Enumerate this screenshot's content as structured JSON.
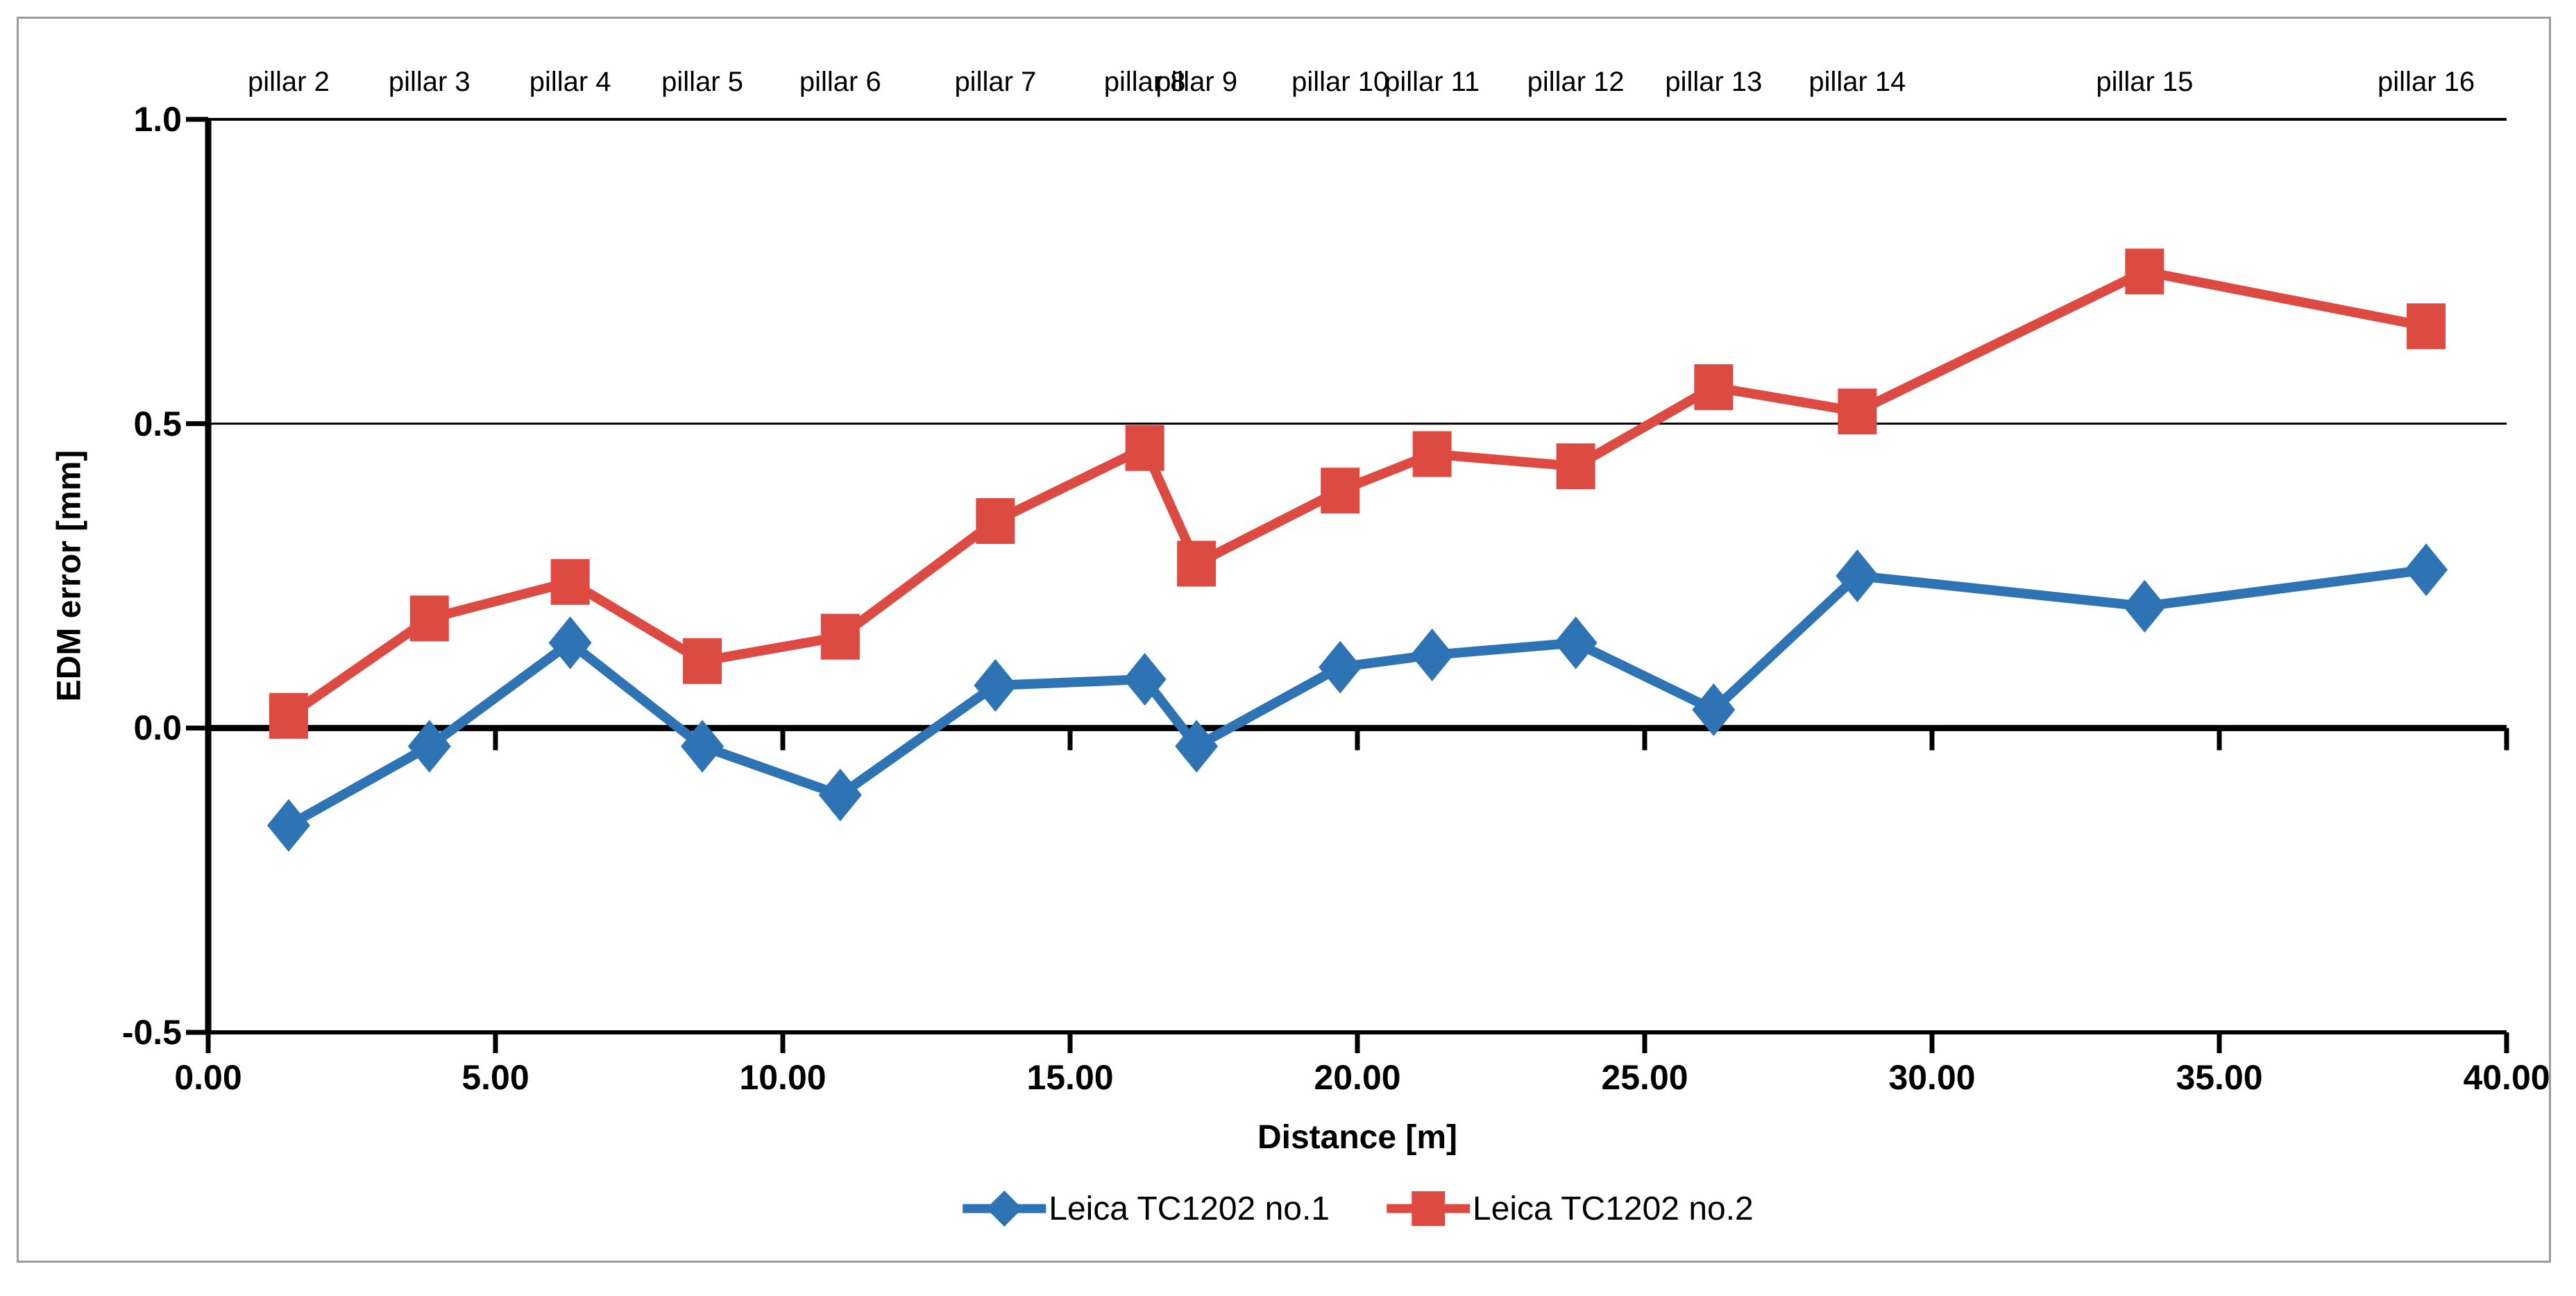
{
  "chart_data": {
    "type": "line",
    "title": "",
    "xlabel": "Distance [m]",
    "ylabel": "EDM error [mm]",
    "xlim": [
      0,
      40
    ],
    "ylim": [
      -0.5,
      1.0
    ],
    "grid": "horizontal gridlines at 0.5 intervals, zero line emphasized",
    "legend_position": "bottom",
    "x_ticks": [
      "0.00",
      "5.00",
      "10.00",
      "15.00",
      "20.00",
      "25.00",
      "30.00",
      "35.00",
      "40.00"
    ],
    "x_tick_values": [
      0,
      5,
      10,
      15,
      20,
      25,
      30,
      35,
      40
    ],
    "y_ticks": [
      "1.0",
      "0.5",
      "0.0",
      "-0.5"
    ],
    "y_tick_values": [
      1.0,
      0.5,
      0.0,
      -0.5
    ],
    "point_labels": [
      "pillar 2",
      "pillar 3",
      "pillar 4",
      "pillar 5",
      "pillar 6",
      "pillar 7",
      "pillar 8",
      "pillar 9",
      "pillar 10",
      "pillar 11",
      "pillar 12",
      "pillar 13",
      "pillar 14",
      "pillar 15",
      "pillar 16"
    ],
    "x": [
      1.4,
      3.85,
      6.3,
      8.6,
      11.0,
      13.7,
      16.3,
      17.2,
      19.7,
      21.3,
      23.8,
      26.2,
      28.7,
      33.7,
      38.6
    ],
    "series": [
      {
        "name": "Leica TC1202 no.1",
        "color": "#2E74B5",
        "marker": "diamond",
        "values": [
          -0.16,
          -0.03,
          0.14,
          -0.03,
          -0.11,
          0.07,
          0.08,
          -0.03,
          0.1,
          0.12,
          0.14,
          0.03,
          0.25,
          0.2,
          0.26
        ]
      },
      {
        "name": "Leica TC1202 no.2",
        "color": "#DC4A41",
        "marker": "square",
        "values": [
          0.02,
          0.18,
          0.24,
          0.11,
          0.15,
          0.34,
          0.46,
          0.27,
          0.39,
          0.45,
          0.43,
          0.56,
          0.52,
          0.75,
          0.66
        ]
      }
    ]
  }
}
